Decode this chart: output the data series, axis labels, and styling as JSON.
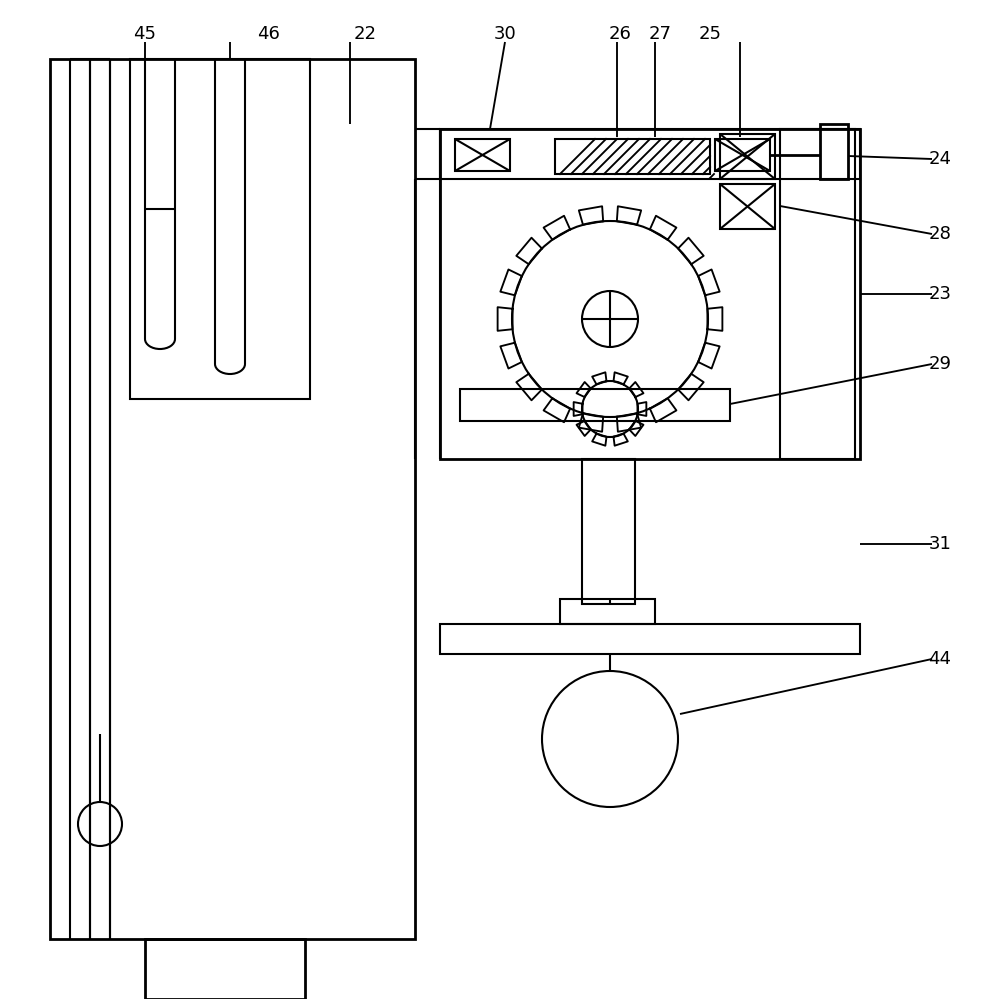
{
  "background_color": "#ffffff",
  "line_color": "#000000",
  "lw": 1.5,
  "lw2": 2.0,
  "label_fontsize": 13
}
